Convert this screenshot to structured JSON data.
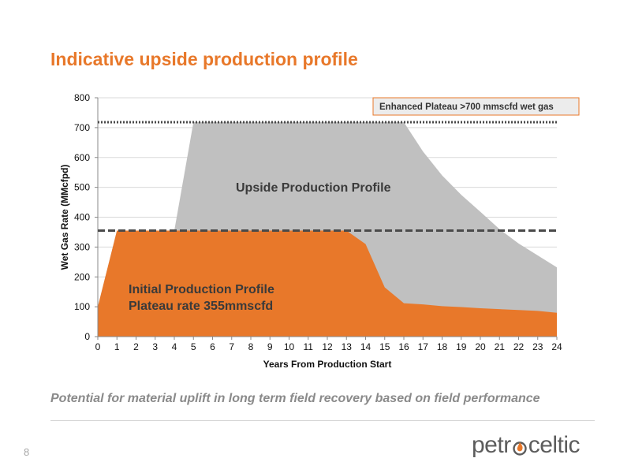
{
  "title": "Indicative upside production profile",
  "caption": "Potential for material uplift in long term field recovery based on field performance",
  "page_number": "8",
  "logo": {
    "prefix": "petr",
    "suffix": "celtic",
    "icon": "flame-o-icon"
  },
  "colors": {
    "title": "#e8782a",
    "initial_area": "#e8782a",
    "upside_area": "#c0c0c0",
    "dashed_line": "#4a4a4a",
    "dotted_line": "#4a4a4a",
    "caption": "#8a8a8a",
    "legend_box_bg": "#ececec",
    "legend_box_border": "#e8782a"
  },
  "chart_data": {
    "type": "area",
    "xlabel": "Years From Production Start",
    "ylabel": "Wet Gas Rate (MMcfpd)",
    "xlim": [
      0,
      24
    ],
    "ylim": [
      0,
      800
    ],
    "x_ticks": [
      0,
      1,
      2,
      3,
      4,
      5,
      6,
      7,
      8,
      9,
      10,
      11,
      12,
      13,
      14,
      15,
      16,
      17,
      18,
      19,
      20,
      21,
      22,
      23,
      24
    ],
    "y_ticks": [
      0,
      100,
      200,
      300,
      400,
      500,
      600,
      700,
      800
    ],
    "grid": "horizontal",
    "series": [
      {
        "key": "initial",
        "x": [
          0,
          1,
          4,
          5,
          13,
          14,
          15,
          16,
          17,
          18,
          19,
          20,
          21,
          22,
          23,
          24
        ],
        "y": [
          100,
          355,
          355,
          355,
          355,
          310,
          165,
          112,
          108,
          102,
          99,
          95,
          92,
          89,
          86,
          80
        ]
      },
      {
        "key": "upside",
        "x": [
          0,
          1,
          4,
          5,
          13,
          14,
          15,
          16,
          17,
          18,
          19,
          20,
          21,
          22,
          23,
          24
        ],
        "y": [
          100,
          355,
          355,
          718,
          718,
          718,
          718,
          718,
          620,
          540,
          475,
          418,
          360,
          312,
          272,
          232
        ]
      }
    ],
    "reference_lines": [
      {
        "key": "plateau-355",
        "y": 355,
        "style": "dashed"
      },
      {
        "key": "plateau-718",
        "y": 718,
        "style": "dotted"
      }
    ],
    "annotations": {
      "upside": "Upside Production Profile",
      "initial_line1": "Initial Production Profile",
      "initial_line2": "Plateau rate 355mmscfd",
      "enhanced": "Enhanced  Plateau >700 mmscfd wet gas"
    }
  }
}
